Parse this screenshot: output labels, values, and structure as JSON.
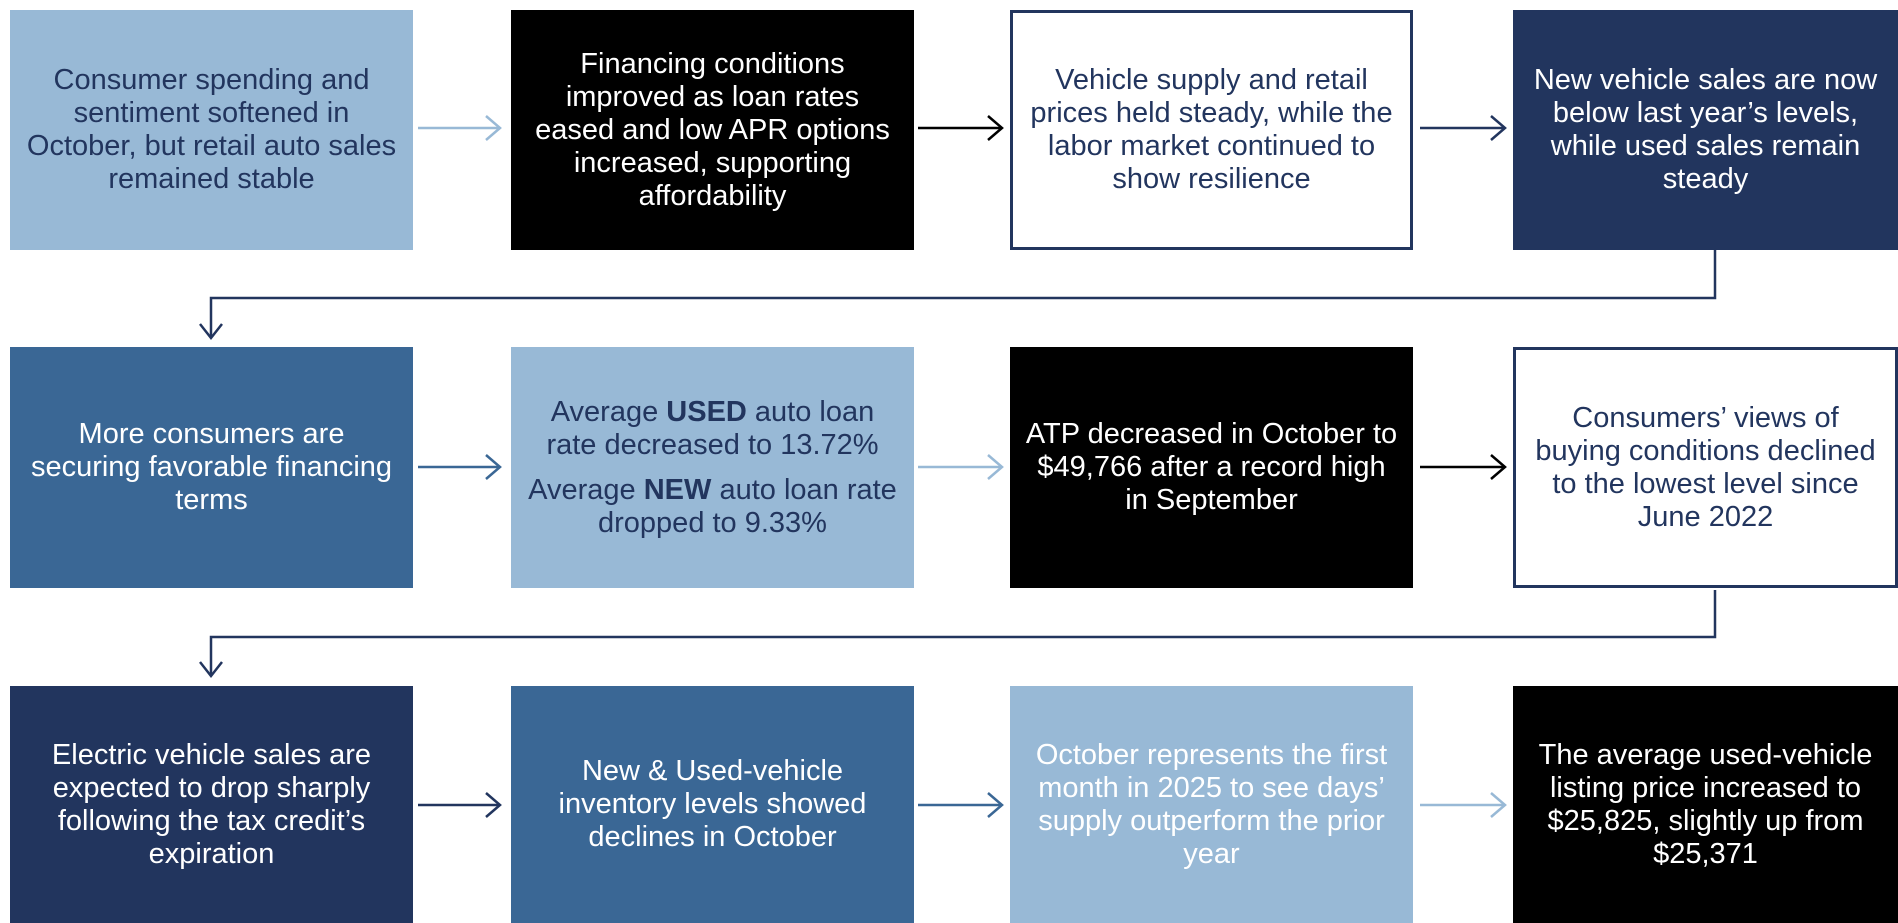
{
  "nodes": [
    {
      "text": "Consumer spending and sentiment softened in October, but retail auto sales remained stable"
    },
    {
      "text": "Financing conditions improved as loan rates eased and low APR options increased, supporting affordability"
    },
    {
      "text": "Vehicle supply and retail prices held steady, while the labor market continued to show resilience"
    },
    {
      "text": "New vehicle sales are now below last year’s levels, while used sales remain steady"
    },
    {
      "text": "More consumers are securing favorable financing terms"
    },
    {
      "paragraphs": [
        {
          "before": "Average ",
          "strong": "USED",
          "after": " auto loan rate decreased to 13.72%"
        },
        {
          "before": "Average ",
          "strong": "NEW",
          "after": " auto loan rate dropped to 9.33%"
        }
      ]
    },
    {
      "text": "ATP decreased in October to $49,766 after a record high in September"
    },
    {
      "text": "Consumers’ views of buying conditions declined to the lowest level since June 2022"
    },
    {
      "text": "Electric vehicle sales are expected to drop sharply following the tax credit’s expiration"
    },
    {
      "text": "New & Used-vehicle inventory levels showed declines in October"
    },
    {
      "text": "October represents the first month in 2025 to see days’ supply outperform the prior year"
    },
    {
      "text": "The average used-vehicle listing price increased to $25,825, slightly up from $25,371"
    }
  ]
}
